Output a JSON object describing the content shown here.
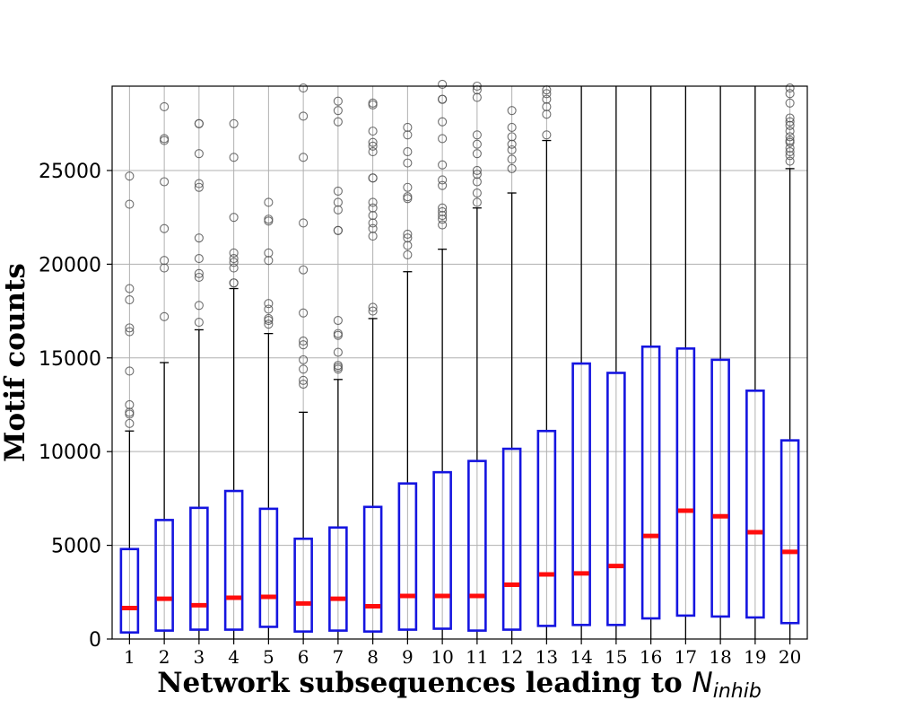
{
  "chart_data": {
    "type": "boxplot",
    "title": "",
    "xlabel": {
      "text": "Network subsequences leading to ",
      "symbol": "N",
      "subscript": "inhib"
    },
    "ylabel": "Motif counts",
    "ylim": [
      0,
      29500
    ],
    "yticks": [
      0,
      5000,
      10000,
      15000,
      20000,
      25000
    ],
    "ytick_labels": [
      "0",
      "5000",
      "10000",
      "15000",
      "20000",
      "25000"
    ],
    "grid": true,
    "colors": {
      "box": "#1515e0",
      "median": "#ff0d0d",
      "whisker": "#000000",
      "flier": "#555555",
      "grid": "#b0b0b0"
    },
    "categories": [
      "1",
      "2",
      "3",
      "4",
      "5",
      "6",
      "7",
      "8",
      "9",
      "10",
      "11",
      "12",
      "13",
      "14",
      "15",
      "16",
      "17",
      "18",
      "19",
      "20"
    ],
    "boxes": [
      {
        "q1": 350,
        "median": 1650,
        "q3": 4800,
        "whisker_low": 0,
        "whisker_high": 11100,
        "fliers": [
          11500,
          12000,
          12100,
          12500,
          14300,
          16400,
          16600,
          18100,
          18700,
          23200,
          24700
        ]
      },
      {
        "q1": 450,
        "median": 2150,
        "q3": 6350,
        "whisker_low": 0,
        "whisker_high": 14750,
        "fliers": [
          17200,
          19800,
          20200,
          21900,
          24400,
          26600,
          26700,
          28400
        ]
      },
      {
        "q1": 500,
        "median": 1800,
        "q3": 7000,
        "whisker_low": 0,
        "whisker_high": 16500,
        "fliers": [
          16900,
          17800,
          19300,
          19500,
          20300,
          21400,
          24100,
          24300,
          25900,
          27500,
          27500
        ]
      },
      {
        "q1": 500,
        "median": 2200,
        "q3": 7900,
        "whisker_low": 0,
        "whisker_high": 18700,
        "fliers": [
          19000,
          19000,
          19800,
          20100,
          20300,
          20600,
          22500,
          25700,
          27500
        ]
      },
      {
        "q1": 650,
        "median": 2250,
        "q3": 6950,
        "whisker_low": 0,
        "whisker_high": 16300,
        "fliers": [
          16800,
          17000,
          17100,
          17600,
          17900,
          20200,
          20600,
          22300,
          22400,
          23300
        ]
      },
      {
        "q1": 400,
        "median": 1900,
        "q3": 5350,
        "whisker_low": 0,
        "whisker_high": 12100,
        "fliers": [
          13600,
          13800,
          14400,
          14900,
          15700,
          15900,
          17400,
          19700,
          22200,
          25700,
          27900,
          29400
        ]
      },
      {
        "q1": 450,
        "median": 2150,
        "q3": 5950,
        "whisker_low": 0,
        "whisker_high": 13850,
        "fliers": [
          14400,
          14500,
          14600,
          15300,
          16200,
          16300,
          17000,
          21800,
          21800,
          22900,
          23300,
          23900,
          27600,
          28200,
          28700
        ]
      },
      {
        "q1": 400,
        "median": 1750,
        "q3": 7050,
        "whisker_low": 0,
        "whisker_high": 17100,
        "fliers": [
          17500,
          17700,
          21500,
          21900,
          22200,
          22600,
          23000,
          23300,
          24600,
          24600,
          26000,
          26300,
          26500,
          27100,
          28500,
          28600
        ]
      },
      {
        "q1": 500,
        "median": 2300,
        "q3": 8300,
        "whisker_low": 0,
        "whisker_high": 19600,
        "fliers": [
          20500,
          21000,
          21400,
          21600,
          23500,
          23600,
          24100,
          25400,
          26000,
          26900,
          27300
        ]
      },
      {
        "q1": 550,
        "median": 2300,
        "q3": 8900,
        "whisker_low": 0,
        "whisker_high": 20800,
        "fliers": [
          22100,
          22400,
          22600,
          22800,
          23000,
          24200,
          24500,
          25300,
          26700,
          27600,
          28800,
          28800,
          29600
        ]
      },
      {
        "q1": 450,
        "median": 2300,
        "q3": 9500,
        "whisker_low": 0,
        "whisker_high": 23000,
        "fliers": [
          23300,
          23800,
          24400,
          24800,
          25000,
          25900,
          26400,
          26900,
          28900,
          29300,
          29500
        ]
      },
      {
        "q1": 500,
        "median": 2900,
        "q3": 10150,
        "whisker_low": 0,
        "whisker_high": 23800,
        "fliers": [
          25100,
          25600,
          26100,
          26400,
          26800,
          27300,
          28200
        ]
      },
      {
        "q1": 700,
        "median": 3450,
        "q3": 11100,
        "whisker_low": 0,
        "whisker_high": 26600,
        "fliers": [
          26900,
          28000,
          28400,
          28800,
          29100,
          29300
        ]
      },
      {
        "q1": 750,
        "median": 3500,
        "q3": 14700,
        "whisker_low": 0,
        "whisker_high": 29500,
        "fliers": []
      },
      {
        "q1": 750,
        "median": 3900,
        "q3": 14200,
        "whisker_low": 0,
        "whisker_high": 29500,
        "fliers": []
      },
      {
        "q1": 1100,
        "median": 5500,
        "q3": 15600,
        "whisker_low": 0,
        "whisker_high": 29500,
        "fliers": []
      },
      {
        "q1": 1250,
        "median": 6850,
        "q3": 15500,
        "whisker_low": 0,
        "whisker_high": 29500,
        "fliers": []
      },
      {
        "q1": 1200,
        "median": 6550,
        "q3": 14900,
        "whisker_low": 0,
        "whisker_high": 29500,
        "fliers": []
      },
      {
        "q1": 1150,
        "median": 5700,
        "q3": 13250,
        "whisker_low": 0,
        "whisker_high": 29500,
        "fliers": []
      },
      {
        "q1": 850,
        "median": 4650,
        "q3": 10600,
        "whisker_low": 0,
        "whisker_high": 25100,
        "fliers": [
          25500,
          25800,
          26000,
          26200,
          26500,
          26600,
          26800,
          27100,
          27400,
          27600,
          27800,
          28600,
          29100,
          29400
        ]
      }
    ]
  }
}
